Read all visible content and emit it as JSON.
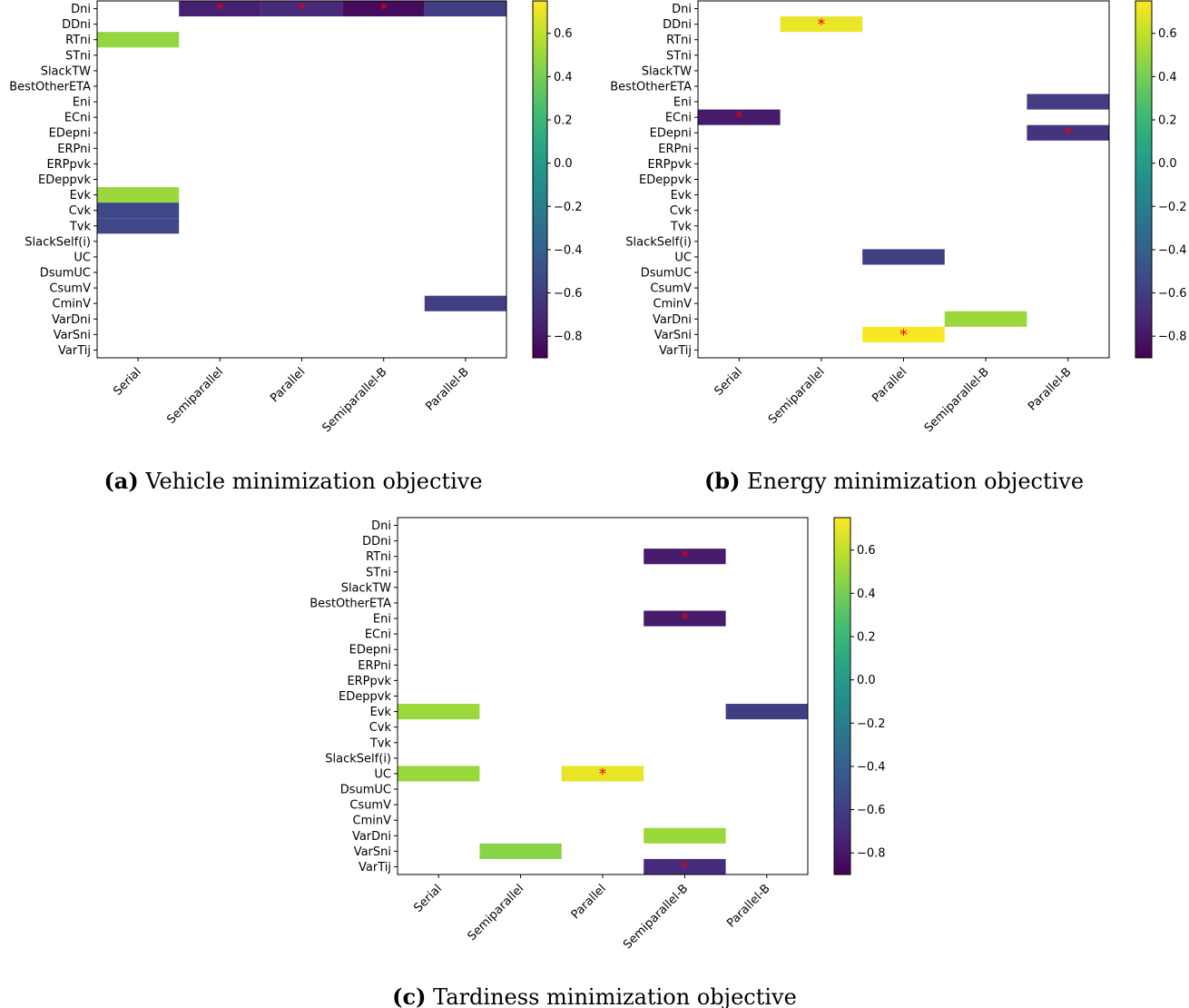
{
  "figure": {
    "row_labels": [
      "Dni",
      "DDni",
      "RTni",
      "STni",
      "SlackTW",
      "BestOtherETA",
      "Eni",
      "ECni",
      "EDepni",
      "ERPni",
      "ERPpvk",
      "EDeppvk",
      "Evk",
      "Cvk",
      "Tvk",
      "SlackSelf(i)",
      "UC",
      "DsumUC",
      "CsumV",
      "CminV",
      "VarDni",
      "VarSni",
      "VarTij"
    ],
    "col_labels": [
      "Serial",
      "Semiparallel",
      "Parallel",
      "Semiparallel-B",
      "Parallel-B"
    ],
    "colorbar_ticks": [
      "0.6",
      "0.4",
      "0.2",
      "0.0",
      "−0.2",
      "−0.4",
      "−0.6",
      "−0.8"
    ],
    "colorbar_tick_values": [
      0.6,
      0.4,
      0.2,
      0.0,
      -0.2,
      -0.4,
      -0.6,
      -0.8
    ],
    "significance_marker": "*",
    "marker_color": "#e8000b",
    "colormap": "viridis"
  },
  "chart_data": [
    {
      "type": "heatmap",
      "caption_tag": "(a)",
      "caption_text": "Vehicle minimization objective",
      "vlim": [
        -0.9,
        0.75
      ],
      "cells": [
        {
          "row": "Dni",
          "col": "Semiparallel",
          "value": -0.75,
          "significant": true
        },
        {
          "row": "Dni",
          "col": "Parallel",
          "value": -0.7,
          "significant": true
        },
        {
          "row": "Dni",
          "col": "Semiparallel-B",
          "value": -0.85,
          "significant": true
        },
        {
          "row": "Dni",
          "col": "Parallel-B",
          "value": -0.6,
          "significant": false
        },
        {
          "row": "RTni",
          "col": "Serial",
          "value": 0.48,
          "significant": false
        },
        {
          "row": "Evk",
          "col": "Serial",
          "value": 0.5,
          "significant": false
        },
        {
          "row": "Cvk",
          "col": "Serial",
          "value": -0.55,
          "significant": false
        },
        {
          "row": "Tvk",
          "col": "Serial",
          "value": -0.55,
          "significant": false
        },
        {
          "row": "CminV",
          "col": "Parallel-B",
          "value": -0.6,
          "significant": false
        }
      ]
    },
    {
      "type": "heatmap",
      "caption_tag": "(b)",
      "caption_text": "Energy minimization objective",
      "vlim": [
        -0.9,
        0.75
      ],
      "cells": [
        {
          "row": "DDni",
          "col": "Semiparallel",
          "value": 0.7,
          "significant": true
        },
        {
          "row": "ECni",
          "col": "Serial",
          "value": -0.78,
          "significant": true
        },
        {
          "row": "Eni",
          "col": "Parallel-B",
          "value": -0.6,
          "significant": false
        },
        {
          "row": "EDepni",
          "col": "Parallel-B",
          "value": -0.65,
          "significant": true
        },
        {
          "row": "UC",
          "col": "Parallel",
          "value": -0.6,
          "significant": false
        },
        {
          "row": "VarDni",
          "col": "Semiparallel-B",
          "value": 0.5,
          "significant": false
        },
        {
          "row": "VarSni",
          "col": "Parallel",
          "value": 0.74,
          "significant": true
        }
      ]
    },
    {
      "type": "heatmap",
      "caption_tag": "(c)",
      "caption_text": "Tardiness minimization objective",
      "vlim": [
        -0.9,
        0.75
      ],
      "cells": [
        {
          "row": "RTni",
          "col": "Semiparallel-B",
          "value": -0.78,
          "significant": true
        },
        {
          "row": "Eni",
          "col": "Semiparallel-B",
          "value": -0.78,
          "significant": true
        },
        {
          "row": "Evk",
          "col": "Serial",
          "value": 0.5,
          "significant": false
        },
        {
          "row": "Evk",
          "col": "Parallel-B",
          "value": -0.6,
          "significant": false
        },
        {
          "row": "UC",
          "col": "Serial",
          "value": 0.5,
          "significant": false
        },
        {
          "row": "UC",
          "col": "Parallel",
          "value": 0.7,
          "significant": true
        },
        {
          "row": "VarDni",
          "col": "Semiparallel-B",
          "value": 0.5,
          "significant": false
        },
        {
          "row": "VarSni",
          "col": "Semiparallel",
          "value": 0.45,
          "significant": false
        },
        {
          "row": "VarTij",
          "col": "Semiparallel-B",
          "value": -0.7,
          "significant": true
        }
      ]
    }
  ]
}
